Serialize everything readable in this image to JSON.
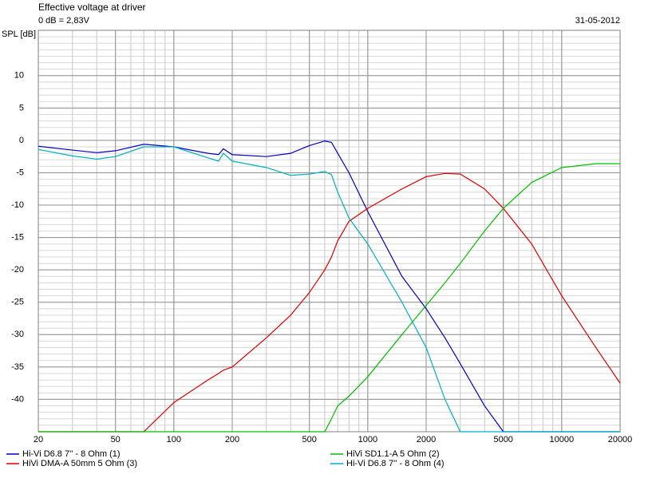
{
  "chart_data": {
    "type": "line",
    "title": "Effective voltage at driver",
    "subtitle": "0 dB = 2,83V",
    "date": "31-05-2012",
    "y_label": "SPL [dB]",
    "x_scale": "log",
    "grid": true,
    "x": [
      20,
      30,
      40,
      50,
      70,
      100,
      150,
      170,
      180,
      200,
      300,
      400,
      500,
      600,
      650,
      700,
      800,
      1000,
      1500,
      2000,
      2500,
      3000,
      4000,
      5000,
      7000,
      10000,
      15000,
      20000
    ],
    "xlim": [
      20,
      20000
    ],
    "xticks": [
      20,
      50,
      100,
      200,
      500,
      1000,
      2000,
      5000,
      10000,
      20000
    ],
    "ylim": [
      -45,
      17
    ],
    "yticks": [
      10,
      5,
      0,
      -5,
      -10,
      -15,
      -20,
      -25,
      -30,
      -35,
      -40
    ],
    "series": [
      {
        "name": "Hi-Vi D6.8 7'' - 8 Ohm (1)",
        "color": "#0000c0",
        "values": [
          -0.9,
          -1.5,
          -1.9,
          -1.6,
          -0.6,
          -1.0,
          -2.0,
          -2.2,
          -1.3,
          -2.2,
          -2.5,
          -2.0,
          -0.8,
          -0.1,
          -0.3,
          -2.0,
          -5.0,
          -11,
          -21,
          -26,
          -30.5,
          -34.5,
          -41,
          -45,
          -45,
          -45,
          -45,
          -45
        ]
      },
      {
        "name": "HiVi DMA-A 50mm 5 Ohm (3)",
        "color": "#e00000",
        "values": [
          -45,
          -45,
          -45,
          -45,
          -45,
          -40.5,
          -37,
          -36,
          -35.5,
          -35,
          -30.5,
          -27,
          -23.5,
          -20,
          -18,
          -15.5,
          -12.5,
          -10.5,
          -7.5,
          -5.6,
          -5.1,
          -5.2,
          -7.5,
          -10.5,
          -16,
          -24,
          -32,
          -37.5
        ]
      },
      {
        "name": "HiVi SD1.1-A 5 Ohm (2)",
        "color": "#00c000",
        "values": [
          -45,
          -45,
          -45,
          -45,
          -45,
          -45,
          -45,
          -45,
          -45,
          -45,
          -45,
          -45,
          -45,
          -45,
          -43,
          -41,
          -39.5,
          -36.5,
          -30,
          -25.5,
          -22,
          -19,
          -14,
          -10.5,
          -6.5,
          -4.2,
          -3.6,
          -3.6
        ]
      },
      {
        "name": "Hi-Vi D6.8 7'' - 8 Ohm (4)",
        "color": "#00b0c0",
        "values": [
          -1.4,
          -2.4,
          -2.9,
          -2.5,
          -1.0,
          -1.0,
          -2.7,
          -3.2,
          -2.0,
          -3.2,
          -4.2,
          -5.4,
          -5.2,
          -4.8,
          -5.3,
          -8,
          -12,
          -16,
          -25,
          -32,
          -40,
          -45,
          -45,
          -45,
          -45,
          -45,
          -45,
          -45
        ]
      }
    ]
  }
}
